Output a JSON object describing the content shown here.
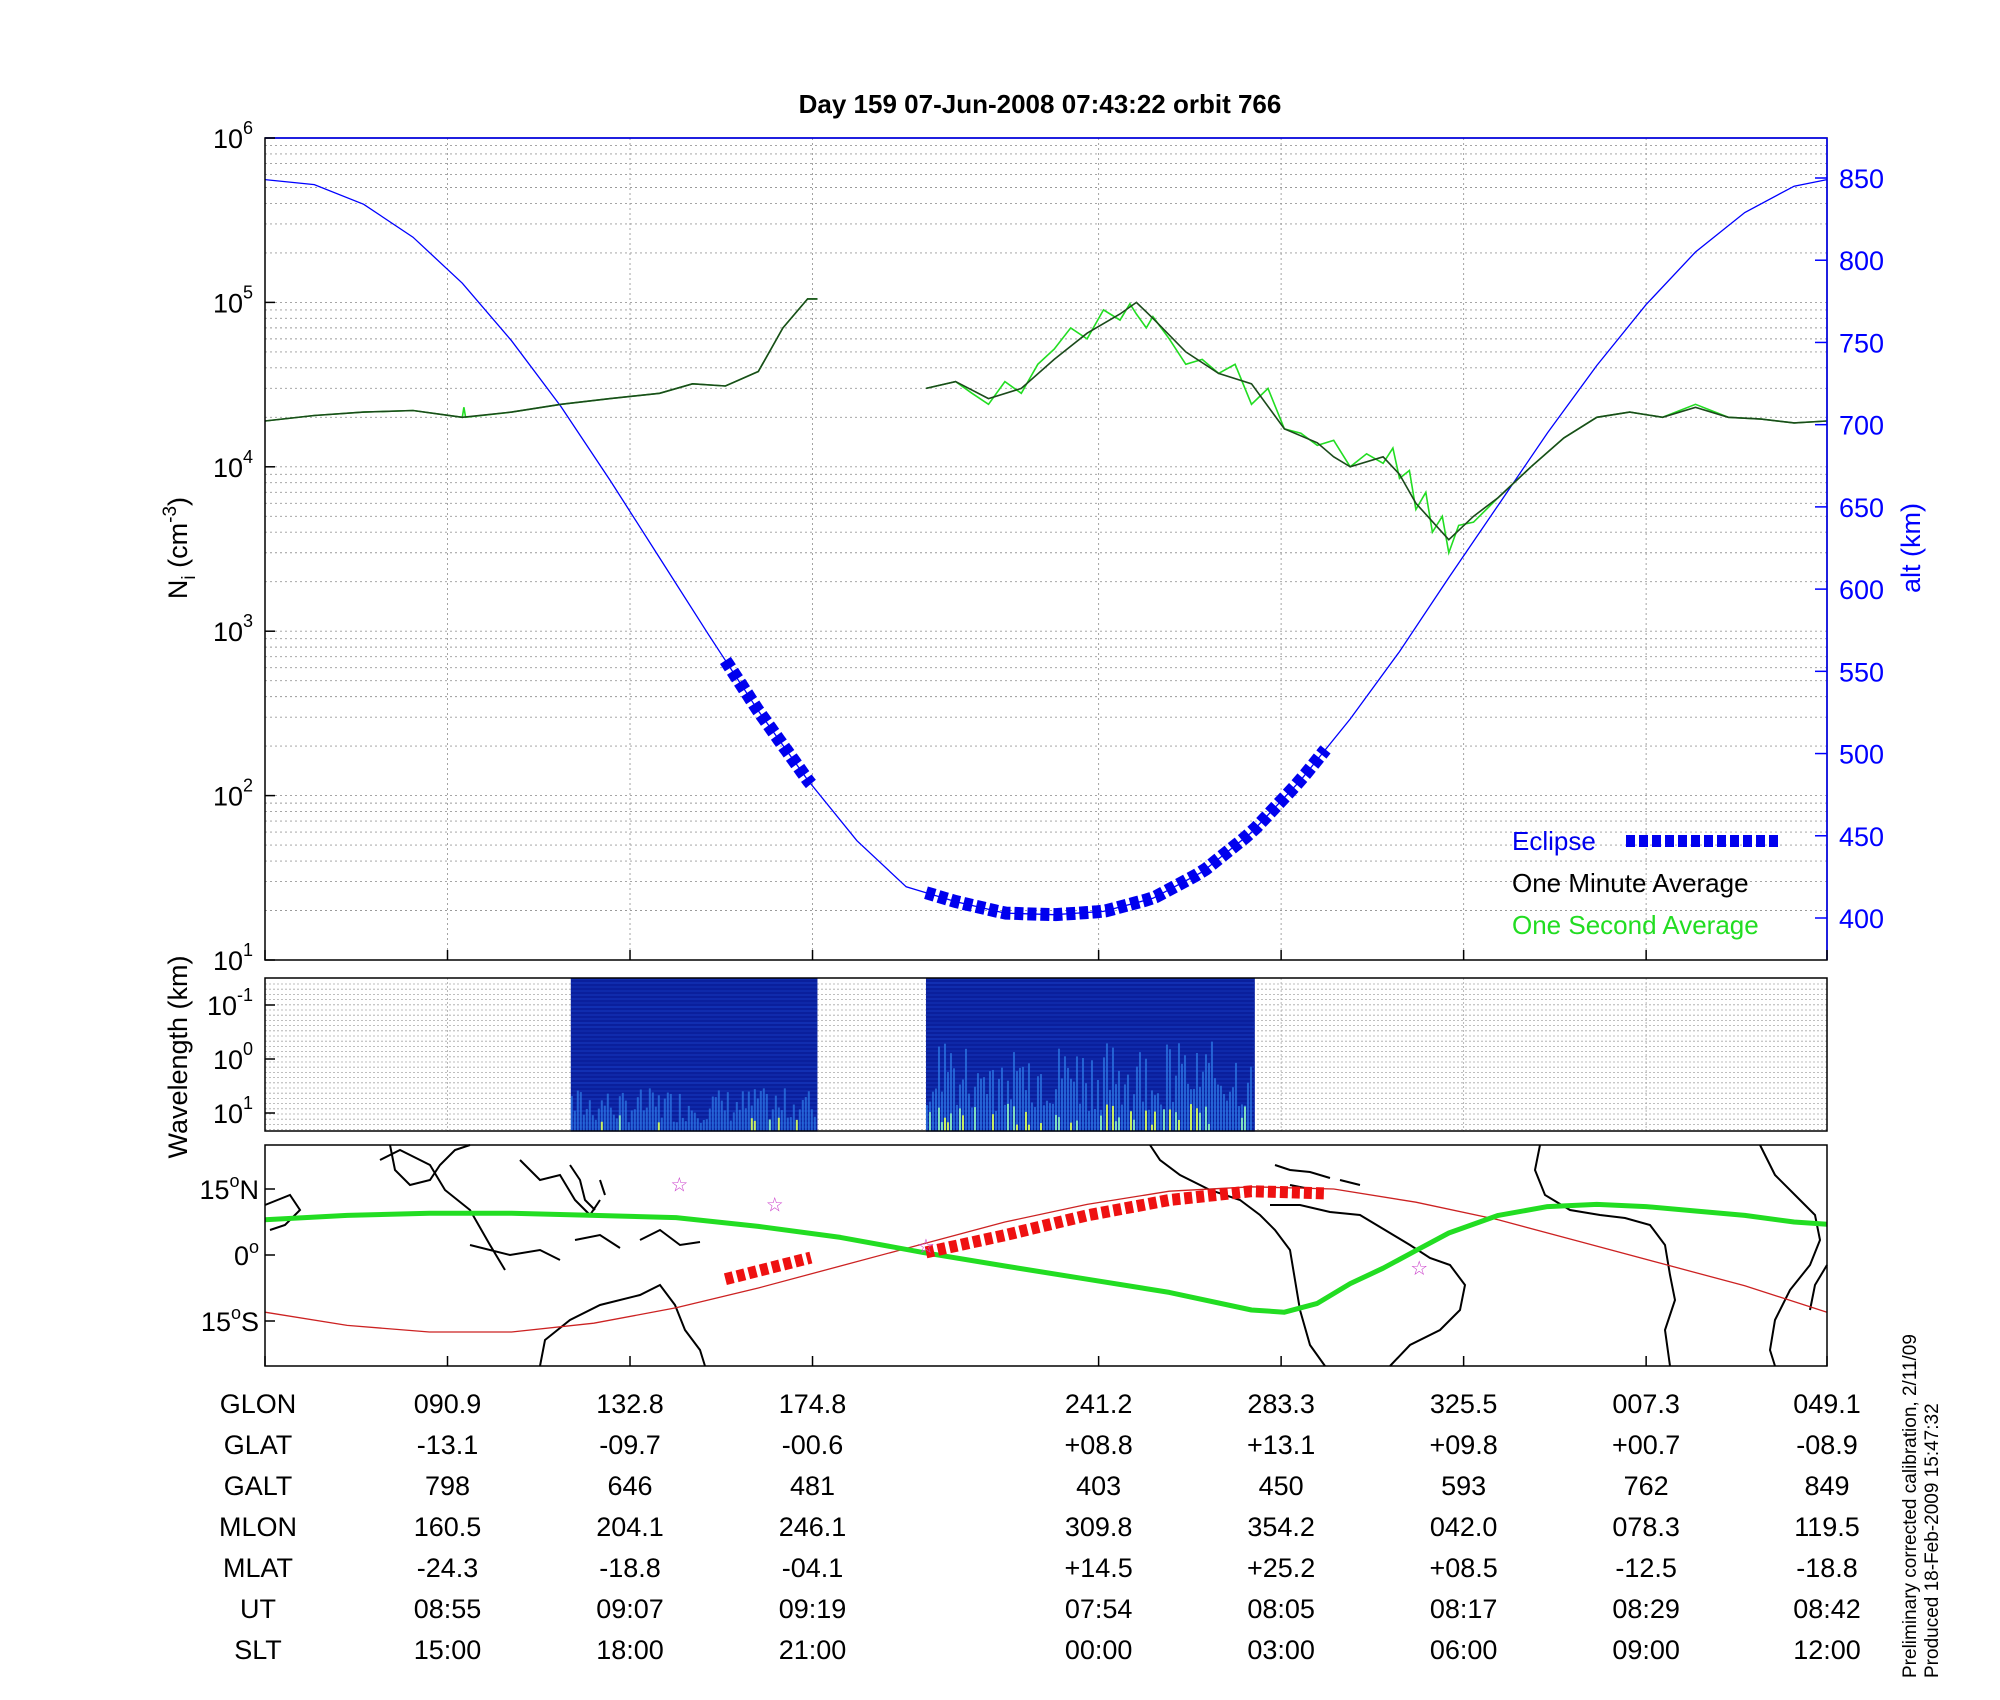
{
  "title": "Day 159  07-Jun-2008 07:43:22   orbit 766",
  "colors": {
    "altitude": "#0000ff",
    "eclipse": "#0000ee",
    "one_minute": "#000000",
    "one_second": "#22dd22",
    "orbit_track": "#22dd22",
    "eclipse_track": "#ee1111",
    "equator": "#cc2222",
    "star": "#cc44cc"
  },
  "chart_data": [
    {
      "type": "line",
      "name": "density-altitude",
      "ylabel_left": "N",
      "ylabel_left_sub": "i",
      "ylabel_left_unit": " (cm",
      "ylabel_left_unit_sup": "-3",
      "ylabel_left_close": ")",
      "ylabel_right": "alt (km)",
      "y_left_scale": "log",
      "y_left_ticks": [
        {
          "base": "10",
          "exp": "1",
          "value": 10
        },
        {
          "base": "10",
          "exp": "2",
          "value": 100
        },
        {
          "base": "10",
          "exp": "3",
          "value": 1000
        },
        {
          "base": "10",
          "exp": "4",
          "value": 10000
        },
        {
          "base": "10",
          "exp": "5",
          "value": 100000
        },
        {
          "base": "10",
          "exp": "6",
          "value": 1000000
        }
      ],
      "y_right_ticks": [
        "400",
        "450",
        "500",
        "550",
        "600",
        "650",
        "700",
        "750",
        "800",
        "850"
      ],
      "x_range_minutes": [
        0,
        95
      ],
      "x_gridlines_minutes": [
        0,
        11.1,
        22.2,
        33.3,
        50.7,
        61.8,
        72.9,
        84,
        95
      ],
      "altitude_km": {
        "x_minutes": [
          0,
          3,
          6,
          9,
          12,
          15,
          18,
          21,
          24,
          27,
          30,
          33,
          36,
          39,
          42,
          45,
          48,
          51,
          54,
          57,
          60,
          63,
          66,
          69,
          72,
          75,
          78,
          81,
          84,
          87,
          90,
          93,
          95
        ],
        "values": [
          849,
          846,
          834,
          814,
          786,
          751,
          711,
          666,
          619,
          572,
          526,
          484,
          447,
          419,
          410,
          403,
          402,
          404,
          412,
          428,
          452,
          484,
          521,
          562,
          607,
          651,
          695,
          736,
          773,
          805,
          829,
          845,
          849
        ]
      },
      "one_minute_average": {
        "segments": [
          {
            "x_minutes": [
              0,
              3,
              6,
              9,
              12,
              15,
              18,
              21,
              24,
              26,
              28,
              30,
              31.5,
              33,
              33.6
            ],
            "values": [
              19000,
              20500,
              21500,
              22000,
              20000,
              21500,
              24000,
              26000,
              28000,
              32000,
              31000,
              38000,
              70000,
              105000,
              105000
            ]
          },
          {
            "x_minutes": [
              40.2,
              42,
              44,
              46,
              48,
              50,
              52,
              53,
              54,
              56,
              58,
              60,
              62,
              64,
              65,
              66,
              68,
              69,
              70,
              72,
              73.5,
              75,
              77,
              79,
              81,
              83,
              85,
              87,
              89,
              91,
              93,
              95
            ],
            "values": [
              30000,
              33000,
              26000,
              30000,
              45000,
              65000,
              85000,
              100000,
              80000,
              50000,
              37000,
              32000,
              17000,
              14000,
              11500,
              10000,
              11500,
              9000,
              6000,
              3600,
              5000,
              6500,
              10000,
              15000,
              20000,
              21500,
              20000,
              23000,
              20000,
              19500,
              18500,
              19000
            ]
          }
        ]
      },
      "one_second_average": {
        "segments": [
          {
            "x_minutes": [
              0,
              3,
              6,
              9,
              12,
              12.1,
              12.2,
              15,
              18,
              21,
              24,
              26,
              28,
              30,
              31.5,
              33,
              33.6
            ],
            "values": [
              19000,
              20500,
              21500,
              22000,
              20000,
              23000,
              20000,
              21500,
              24000,
              26000,
              28000,
              32000,
              31000,
              38000,
              70000,
              105000,
              105000
            ]
          },
          {
            "x_minutes": [
              40.2,
              42,
              43,
              44,
              45,
              46,
              47,
              48,
              49,
              50,
              51,
              52,
              52.6,
              53,
              53.6,
              54,
              55,
              56,
              57,
              58,
              59,
              60,
              61,
              62,
              63,
              64,
              65,
              66,
              67,
              68,
              68.6,
              69,
              69.6,
              70,
              70.6,
              71,
              71.6,
              72,
              72.6,
              73.5,
              75,
              77,
              79,
              81,
              83,
              85,
              87,
              89,
              91,
              93,
              95
            ],
            "values": [
              30000,
              33000,
              28000,
              24000,
              33000,
              28000,
              42000,
              52000,
              70000,
              60000,
              90000,
              78000,
              98000,
              85000,
              70000,
              82000,
              60000,
              42000,
              45000,
              37000,
              42000,
              24000,
              30000,
              17000,
              16000,
              13500,
              14500,
              10000,
              12000,
              10500,
              13000,
              8500,
              9500,
              5500,
              7000,
              4000,
              5000,
              3000,
              4400,
              4600,
              6500,
              10000,
              15000,
              20000,
              21500,
              20000,
              24000,
              20000,
              19500,
              18500,
              19000
            ]
          }
        ]
      },
      "eclipse": {
        "segments": [
          {
            "x_minutes": [
              28,
              33.2
            ],
            "altitude_km": [
              551,
              474
            ]
          },
          {
            "x_minutes": [
              40.2,
              64.5
            ],
            "altitude_km": [
              468,
              481
            ]
          }
        ]
      },
      "legend": {
        "position": "bottom-right",
        "entries": [
          {
            "label": "Eclipse",
            "style": "eclipse"
          },
          {
            "label": "One Minute Average",
            "style": "minute"
          },
          {
            "label": "One Second Average",
            "style": "second"
          }
        ]
      }
    },
    {
      "type": "heatmap",
      "name": "spectrogram",
      "ylabel": "Wavelength (km)",
      "y_ticks": [
        {
          "base": "10",
          "exp": "-1"
        },
        {
          "base": "10",
          "exp": "0"
        },
        {
          "base": "10",
          "exp": "1"
        }
      ],
      "data_blocks_minutes": [
        [
          18.6,
          33.6
        ],
        [
          40.2,
          60.2
        ]
      ]
    },
    {
      "type": "map",
      "name": "ground-track",
      "y_ticks": [
        {
          "deg": "15",
          "dir": "N"
        },
        {
          "deg": "0",
          "dir": ""
        },
        {
          "deg": "15",
          "dir": "S"
        }
      ],
      "track_lat": {
        "x_minutes": [
          0,
          5,
          10,
          15,
          20,
          25,
          30,
          35,
          40,
          45,
          50,
          55,
          60,
          62,
          64,
          66,
          68,
          70,
          72,
          75,
          78,
          81,
          84,
          87,
          90,
          93,
          95
        ],
        "values": [
          8,
          9,
          9.5,
          9.5,
          9,
          8.5,
          6.5,
          4,
          0.6,
          -2.5,
          -5.5,
          -8.5,
          -12.5,
          -13,
          -11,
          -6.5,
          -3,
          1,
          5,
          9,
          11,
          11.5,
          11,
          10,
          9,
          7.5,
          7
        ]
      },
      "eclipse_track": {
        "segments": [
          {
            "x_minutes": [
              28,
              33.2
            ],
            "lat": [
              -5.5,
              -0.6
            ]
          },
          {
            "x_minutes": [
              40.2,
              45,
              50,
              55,
              60,
              64.5
            ],
            "lat": [
              0.6,
              4.5,
              9,
              12.5,
              14.5,
              14
            ]
          }
        ]
      },
      "equator_line": {
        "x_minutes": [
          0,
          5,
          10,
          15,
          20,
          25,
          30,
          35,
          40,
          45,
          50,
          55,
          60,
          65,
          70,
          75,
          80,
          85,
          90,
          95
        ],
        "values": [
          -13,
          -16,
          -17.5,
          -17.5,
          -15.5,
          -12,
          -7.5,
          -2.5,
          2.5,
          7.5,
          11.5,
          14.5,
          15.5,
          15,
          12,
          8,
          3,
          -2,
          -7,
          -13
        ]
      },
      "stars": [
        {
          "x_minutes": 25.2,
          "lat": 16
        },
        {
          "x_minutes": 31,
          "lat": 11.5
        },
        {
          "x_minutes": 40.2,
          "lat": 2
        },
        {
          "x_minutes": 70.2,
          "lat": -3
        }
      ]
    }
  ],
  "table": {
    "rows": [
      {
        "label": "GLON",
        "values": [
          "090.9",
          "132.8",
          "174.8",
          "241.2",
          "283.3",
          "325.5",
          "007.3",
          "049.1"
        ]
      },
      {
        "label": "GLAT",
        "values": [
          "-13.1",
          "-09.7",
          "-00.6",
          "+08.8",
          "+13.1",
          "+09.8",
          "+00.7",
          "-08.9"
        ]
      },
      {
        "label": "GALT",
        "values": [
          "798",
          "646",
          "481",
          "403",
          "450",
          "593",
          "762",
          "849"
        ]
      },
      {
        "label": "MLON",
        "values": [
          "160.5",
          "204.1",
          "246.1",
          "309.8",
          "354.2",
          "042.0",
          "078.3",
          "119.5"
        ]
      },
      {
        "label": "MLAT",
        "values": [
          "-24.3",
          "-18.8",
          "-04.1",
          "+14.5",
          "+25.2",
          "+08.5",
          "-12.5",
          "-18.8"
        ]
      },
      {
        "label": "UT",
        "values": [
          "08:55",
          "09:07",
          "09:19",
          "07:54",
          "08:05",
          "08:17",
          "08:29",
          "08:42"
        ]
      },
      {
        "label": "SLT",
        "values": [
          "15:00",
          "18:00",
          "21:00",
          "00:00",
          "03:00",
          "06:00",
          "09:00",
          "12:00"
        ]
      }
    ]
  },
  "footer": {
    "line1": "Preliminary corrected calibration, 2/11/09",
    "line2": "Produced 18-Feb-2009 15:47:32"
  }
}
